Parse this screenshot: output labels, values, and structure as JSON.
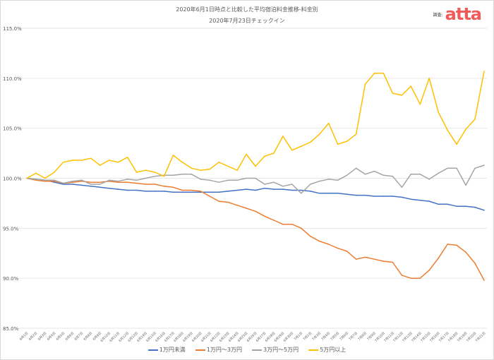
{
  "chart_data": {
    "type": "line",
    "title": "2020年6月1日時点と比較した平均宿泊料金推移-料金別",
    "subtitle": "2020年7月23日チェックイン",
    "xlabel": "",
    "ylabel": "",
    "ylim": [
      85,
      115
    ],
    "yticks": [
      "85.0%",
      "90.0%",
      "95.0%",
      "100.0%",
      "105.0%",
      "110.0%",
      "115.0%"
    ],
    "ytick_values": [
      85,
      90,
      95,
      100,
      105,
      110,
      115
    ],
    "grid": true,
    "legend_position": "bottom",
    "categories": [
      "6月1日",
      "6月2日",
      "6月3日",
      "6月4日",
      "6月5日",
      "6月6日",
      "6月7日",
      "6月8日",
      "6月9日",
      "6月10日",
      "6月11日",
      "6月12日",
      "6月13日",
      "6月14日",
      "6月15日",
      "6月16日",
      "6月17日",
      "6月18日",
      "6月19日",
      "6月20日",
      "6月21日",
      "6月22日",
      "6月23日",
      "6月24日",
      "6月25日",
      "6月26日",
      "6月27日",
      "6月28日",
      "6月29日",
      "6月30日",
      "7月1日",
      "7月2日",
      "7月3日",
      "7月4日",
      "7月5日",
      "7月6日",
      "7月7日",
      "7月8日",
      "7月9日",
      "7月10日",
      "7月11日",
      "7月12日",
      "7月13日",
      "7月14日",
      "7月15日",
      "7月16日",
      "7月17日",
      "7月18日",
      "7月19日",
      "7月20日",
      "7月21日"
    ],
    "series": [
      {
        "name": "1万円未満",
        "color": "#4472c4",
        "values": [
          100,
          99.9,
          99.8,
          99.6,
          99.4,
          99.4,
          99.3,
          99.2,
          99.1,
          99.0,
          98.9,
          98.8,
          98.8,
          98.7,
          98.7,
          98.7,
          98.6,
          98.6,
          98.6,
          98.6,
          98.6,
          98.6,
          98.7,
          98.8,
          98.9,
          98.8,
          99.0,
          98.9,
          98.9,
          98.8,
          98.8,
          98.7,
          98.5,
          98.5,
          98.5,
          98.4,
          98.3,
          98.3,
          98.2,
          98.2,
          98.2,
          98.1,
          97.9,
          97.8,
          97.7,
          97.4,
          97.4,
          97.2,
          97.2,
          97.1,
          96.8
        ]
      },
      {
        "name": "1万円～3万円",
        "color": "#ed7d31",
        "values": [
          100,
          99.8,
          99.7,
          99.7,
          99.5,
          99.6,
          99.7,
          99.6,
          99.6,
          99.7,
          99.6,
          99.6,
          99.5,
          99.4,
          99.4,
          99.2,
          99.1,
          98.8,
          98.8,
          98.7,
          98.2,
          97.7,
          97.6,
          97.3,
          97.0,
          96.7,
          96.2,
          95.8,
          95.4,
          95.4,
          95.0,
          94.2,
          93.7,
          93.4,
          93.0,
          92.7,
          91.9,
          92.1,
          91.9,
          91.7,
          91.6,
          90.3,
          90.0,
          90.0,
          90.8,
          92.0,
          93.4,
          93.3,
          92.6,
          91.5,
          89.8
        ]
      },
      {
        "name": "3万円～5万円",
        "color": "#a5a5a5",
        "values": [
          100,
          99.9,
          99.8,
          99.8,
          99.5,
          99.7,
          99.8,
          99.4,
          99.4,
          99.8,
          99.7,
          99.9,
          99.8,
          100.0,
          100.2,
          100.3,
          100.3,
          100.4,
          100.4,
          99.9,
          99.8,
          99.6,
          99.8,
          99.8,
          100.0,
          100.0,
          99.4,
          99.6,
          99.2,
          99.4,
          98.5,
          99.4,
          99.7,
          99.9,
          99.8,
          100.3,
          101.0,
          100.4,
          100.7,
          100.3,
          100.2,
          99.1,
          100.4,
          100.4,
          99.9,
          100.5,
          101.0,
          101.0,
          99.3,
          101.0,
          101.3
        ]
      },
      {
        "name": "5万円以上",
        "color": "#ffc000",
        "values": [
          100,
          100.5,
          100.0,
          100.6,
          101.6,
          101.8,
          101.8,
          102.0,
          101.3,
          101.8,
          101.6,
          102.1,
          100.6,
          100.8,
          100.6,
          100.2,
          102.3,
          101.6,
          101.0,
          100.8,
          100.9,
          101.6,
          101.2,
          100.8,
          102.4,
          101.2,
          102.2,
          102.5,
          104.2,
          102.8,
          103.2,
          103.6,
          104.4,
          105.5,
          103.4,
          103.7,
          104.4,
          109.4,
          110.5,
          110.5,
          108.5,
          108.3,
          109.2,
          107.4,
          110.0,
          106.6,
          104.8,
          103.4,
          104.9,
          105.9,
          110.7
        ]
      }
    ]
  },
  "header": {
    "survey_label": "調査:",
    "brand": "atta"
  }
}
